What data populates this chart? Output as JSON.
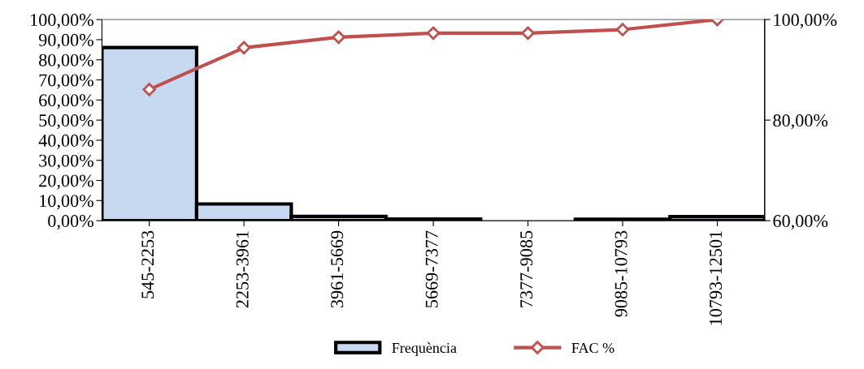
{
  "chart_data": {
    "type": "bar",
    "categories": [
      "545-2253",
      "2253-3961",
      "3961-5669",
      "5669-7377",
      "7377-9085",
      "9085-10793",
      "10793-12501"
    ],
    "series": [
      {
        "name": "Frequència",
        "color": "#c6d9f1",
        "values": [
          86.1,
          8.3,
          2.1,
          0.8,
          0,
          0.7,
          2.0
        ]
      },
      {
        "name": "FAC %",
        "type": "line",
        "axis": "y2",
        "color": "#c0504d",
        "marker": "diamond",
        "values": [
          86.1,
          94.4,
          96.5,
          97.3,
          97.3,
          98.0,
          100.0
        ]
      }
    ],
    "ylim": [
      0,
      100
    ],
    "yticks": [
      {
        "value": 0,
        "label": "0,00%"
      },
      {
        "value": 10,
        "label": "10,00%"
      },
      {
        "value": 20,
        "label": "20,00%"
      },
      {
        "value": 30,
        "label": "30,00%"
      },
      {
        "value": 40,
        "label": "40,00%"
      },
      {
        "value": 50,
        "label": "50,00%"
      },
      {
        "value": 60,
        "label": "60,00%"
      },
      {
        "value": 70,
        "label": "70,00%"
      },
      {
        "value": 80,
        "label": "80,00%"
      },
      {
        "value": 90,
        "label": "90,00%"
      },
      {
        "value": 100,
        "label": "100,00%"
      }
    ],
    "y2lim": [
      60,
      100
    ],
    "y2ticks": [
      {
        "value": 60,
        "label": "60,00%"
      },
      {
        "value": 80,
        "label": "80,00%"
      },
      {
        "value": 100,
        "label": "100,00%"
      }
    ],
    "grid": false,
    "legend": "bottom"
  }
}
